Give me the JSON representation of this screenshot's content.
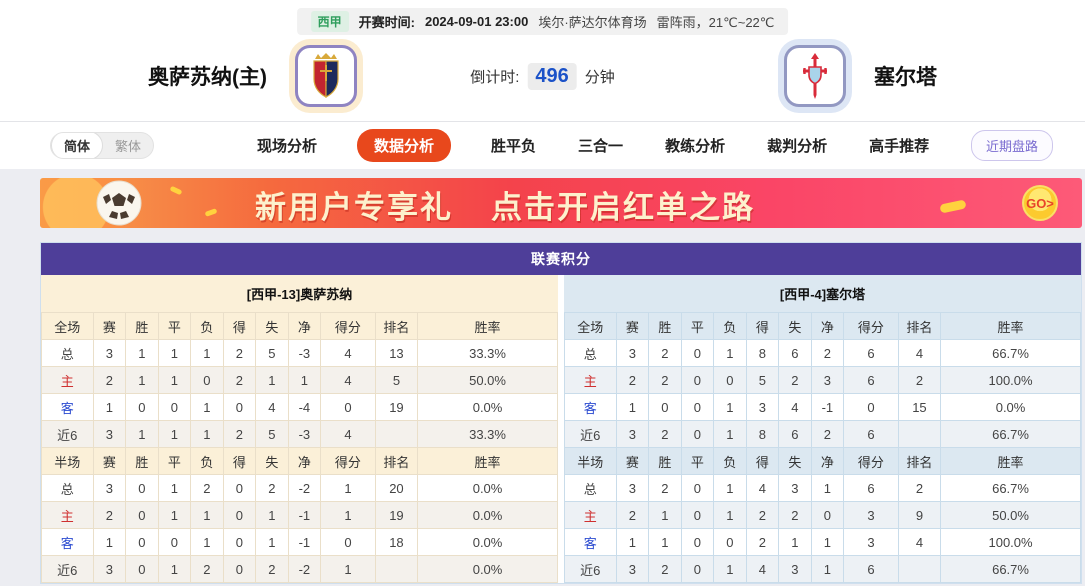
{
  "colors": {
    "accent_tab": "#e8481c",
    "table_title_purple": "#4e3e99",
    "home_band_cream": "#fbf0d8",
    "away_band_blue": "#dce8f1",
    "league_badge_green": "#2f9e5d",
    "countdown_blue": "#1b52c8",
    "home_label_red": "#cf3030",
    "away_label_blue": "#2b4bd0",
    "banner_gold": "#ffd23e"
  },
  "header": {
    "info_bar": {
      "league": "西甲",
      "kickoff_label": "开赛时间:",
      "kickoff_time": "2024-09-01 23:00",
      "venue": "埃尔·萨达尔体育场",
      "weather": "雷阵雨，21℃~22℃"
    },
    "home_team": "奥萨苏纳(主)",
    "away_team": "塞尔塔",
    "countdown": {
      "label": "倒计时:",
      "value": "496",
      "unit": "分钟"
    }
  },
  "nav": {
    "lang": {
      "simplified": "简体",
      "traditional": "繁体"
    },
    "tabs": [
      {
        "label": "现场分析"
      },
      {
        "label": "数据分析"
      },
      {
        "label": "胜平负"
      },
      {
        "label": "三合一"
      },
      {
        "label": "教练分析"
      },
      {
        "label": "裁判分析"
      },
      {
        "label": "高手推荐"
      }
    ],
    "recent_button": "近期盘路"
  },
  "banner": {
    "title": "新用户专享礼",
    "subtitle": "点击开启红单之路",
    "go_label": "GO>"
  },
  "league_table": {
    "title": "联赛积分",
    "sides": [
      {
        "side": "home",
        "header": "[西甲-13]奥萨苏纳",
        "sections": [
          {
            "columns": [
              "全场",
              "赛",
              "胜",
              "平",
              "负",
              "得",
              "失",
              "净",
              "得分",
              "排名",
              "胜率"
            ],
            "rows": [
              [
                "总",
                "3",
                "1",
                "1",
                "1",
                "2",
                "5",
                "-3",
                "4",
                "13",
                "33.3%"
              ],
              [
                "主",
                "2",
                "1",
                "1",
                "0",
                "2",
                "1",
                "1",
                "4",
                "5",
                "50.0%"
              ],
              [
                "客",
                "1",
                "0",
                "0",
                "1",
                "0",
                "4",
                "-4",
                "0",
                "19",
                "0.0%"
              ],
              [
                "近6",
                "3",
                "1",
                "1",
                "1",
                "2",
                "5",
                "-3",
                "4",
                "",
                "33.3%"
              ]
            ]
          },
          {
            "columns": [
              "半场",
              "赛",
              "胜",
              "平",
              "负",
              "得",
              "失",
              "净",
              "得分",
              "排名",
              "胜率"
            ],
            "rows": [
              [
                "总",
                "3",
                "0",
                "1",
                "2",
                "0",
                "2",
                "-2",
                "1",
                "20",
                "0.0%"
              ],
              [
                "主",
                "2",
                "0",
                "1",
                "1",
                "0",
                "1",
                "-1",
                "1",
                "19",
                "0.0%"
              ],
              [
                "客",
                "1",
                "0",
                "0",
                "1",
                "0",
                "1",
                "-1",
                "0",
                "18",
                "0.0%"
              ],
              [
                "近6",
                "3",
                "0",
                "1",
                "2",
                "0",
                "2",
                "-2",
                "1",
                "",
                "0.0%"
              ]
            ]
          }
        ]
      },
      {
        "side": "away",
        "header": "[西甲-4]塞尔塔",
        "sections": [
          {
            "columns": [
              "全场",
              "赛",
              "胜",
              "平",
              "负",
              "得",
              "失",
              "净",
              "得分",
              "排名",
              "胜率"
            ],
            "rows": [
              [
                "总",
                "3",
                "2",
                "0",
                "1",
                "8",
                "6",
                "2",
                "6",
                "4",
                "66.7%"
              ],
              [
                "主",
                "2",
                "2",
                "0",
                "0",
                "5",
                "2",
                "3",
                "6",
                "2",
                "100.0%"
              ],
              [
                "客",
                "1",
                "0",
                "0",
                "1",
                "3",
                "4",
                "-1",
                "0",
                "15",
                "0.0%"
              ],
              [
                "近6",
                "3",
                "2",
                "0",
                "1",
                "8",
                "6",
                "2",
                "6",
                "",
                "66.7%"
              ]
            ]
          },
          {
            "columns": [
              "半场",
              "赛",
              "胜",
              "平",
              "负",
              "得",
              "失",
              "净",
              "得分",
              "排名",
              "胜率"
            ],
            "rows": [
              [
                "总",
                "3",
                "2",
                "0",
                "1",
                "4",
                "3",
                "1",
                "6",
                "2",
                "66.7%"
              ],
              [
                "主",
                "2",
                "1",
                "0",
                "1",
                "2",
                "2",
                "0",
                "3",
                "9",
                "50.0%"
              ],
              [
                "客",
                "1",
                "1",
                "0",
                "0",
                "2",
                "1",
                "1",
                "3",
                "4",
                "100.0%"
              ],
              [
                "近6",
                "3",
                "2",
                "0",
                "1",
                "4",
                "3",
                "1",
                "6",
                "",
                "66.7%"
              ]
            ]
          }
        ]
      }
    ]
  }
}
